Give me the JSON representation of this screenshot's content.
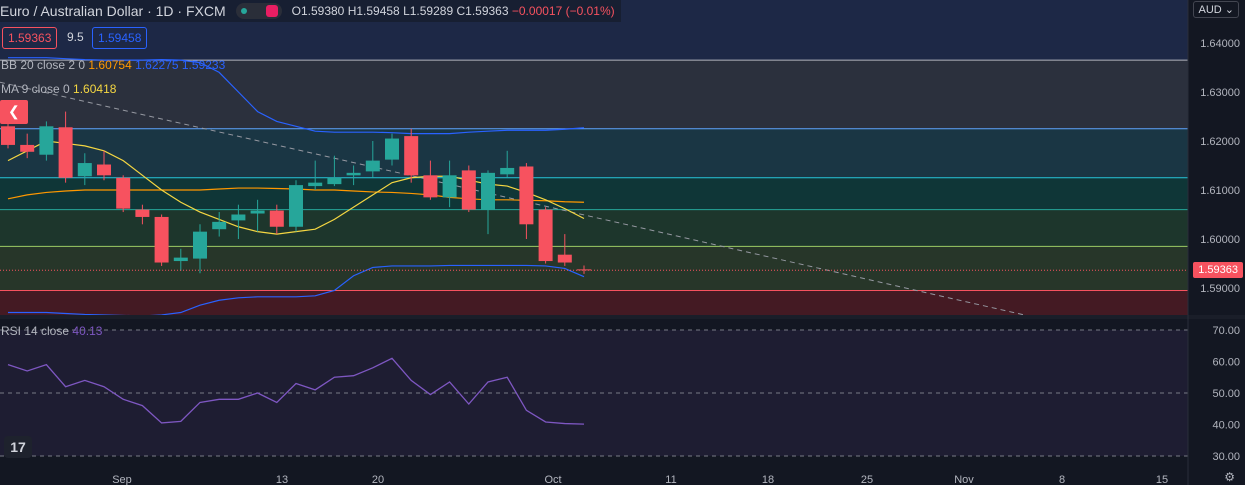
{
  "header": {
    "symbol_title": "Euro / Australian Dollar · 1D · FXCM",
    "ohlc": {
      "o": "O1.59380",
      "h": "H1.59458",
      "l": "L1.59289",
      "c": "C1.59363",
      "chg": "−0.00017 (−0.01%)"
    }
  },
  "pills": {
    "bid": "1.59363",
    "spread": "9.5",
    "ask": "1.59458"
  },
  "indicators": {
    "bb_label": "BB 20 close 2 0",
    "bb_basis": "1.60754",
    "bb_upper": "1.62275",
    "bb_lower": "1.59233",
    "ma_label": "MA 9 close 0",
    "ma_value": "1.60418",
    "rsi_label": "RSI 14 close",
    "rsi_value": "40.13"
  },
  "currency_menu": "AUD",
  "current_price_badge": "1.59363",
  "colors": {
    "up": "#26a69a",
    "down": "#f7525f",
    "bb": "#2962ff",
    "bb_basis": "#ff9800",
    "ma": "#f5d742",
    "rsi": "#7e57c2"
  },
  "chart_data": [
    {
      "type": "candlestick",
      "ylim": [
        1.585,
        1.645
      ],
      "y_ticks": [
        "1.64000",
        "1.63000",
        "1.62000",
        "1.61000",
        "1.60000",
        "1.59000"
      ],
      "x_ticks": [
        "Sep",
        "13",
        "20",
        "Oct",
        "11",
        "18",
        "25",
        "Nov",
        "8",
        "15"
      ],
      "candles": [
        {
          "d": "Aug 26",
          "o": 1.623,
          "h": 1.6245,
          "l": 1.6185,
          "c": 1.6192
        },
        {
          "d": "Aug 27",
          "o": 1.6192,
          "h": 1.6215,
          "l": 1.6165,
          "c": 1.6178
        },
        {
          "d": "Aug 30",
          "o": 1.6172,
          "h": 1.624,
          "l": 1.616,
          "c": 1.623
        },
        {
          "d": "Aug 31",
          "o": 1.6228,
          "h": 1.626,
          "l": 1.6115,
          "c": 1.6125
        },
        {
          "d": "Sep 1",
          "o": 1.6128,
          "h": 1.6175,
          "l": 1.611,
          "c": 1.6155
        },
        {
          "d": "Sep 2",
          "o": 1.6152,
          "h": 1.618,
          "l": 1.612,
          "c": 1.613
        },
        {
          "d": "Sep 3",
          "o": 1.6125,
          "h": 1.613,
          "l": 1.6055,
          "c": 1.6062
        },
        {
          "d": "Sep 6",
          "o": 1.606,
          "h": 1.607,
          "l": 1.603,
          "c": 1.6045
        },
        {
          "d": "Sep 7",
          "o": 1.6045,
          "h": 1.605,
          "l": 1.5945,
          "c": 1.5952
        },
        {
          "d": "Sep 8",
          "o": 1.5955,
          "h": 1.598,
          "l": 1.5935,
          "c": 1.5962
        },
        {
          "d": "Sep 9",
          "o": 1.596,
          "h": 1.603,
          "l": 1.593,
          "c": 1.6015
        },
        {
          "d": "Sep 10",
          "o": 1.602,
          "h": 1.6055,
          "l": 1.6005,
          "c": 1.6035
        },
        {
          "d": "Sep 13",
          "o": 1.6038,
          "h": 1.607,
          "l": 1.6,
          "c": 1.605
        },
        {
          "d": "Sep 14",
          "o": 1.6052,
          "h": 1.608,
          "l": 1.6015,
          "c": 1.6058
        },
        {
          "d": "Sep 15",
          "o": 1.6058,
          "h": 1.607,
          "l": 1.601,
          "c": 1.6025
        },
        {
          "d": "Sep 16",
          "o": 1.6025,
          "h": 1.612,
          "l": 1.6015,
          "c": 1.611
        },
        {
          "d": "Sep 17",
          "o": 1.6108,
          "h": 1.616,
          "l": 1.61,
          "c": 1.6115
        },
        {
          "d": "Sep 20",
          "o": 1.6112,
          "h": 1.617,
          "l": 1.6108,
          "c": 1.6125
        },
        {
          "d": "Sep 21",
          "o": 1.613,
          "h": 1.615,
          "l": 1.611,
          "c": 1.6135
        },
        {
          "d": "Sep 22",
          "o": 1.6138,
          "h": 1.62,
          "l": 1.6125,
          "c": 1.616
        },
        {
          "d": "Sep 23",
          "o": 1.6162,
          "h": 1.6215,
          "l": 1.615,
          "c": 1.6205
        },
        {
          "d": "Sep 24",
          "o": 1.621,
          "h": 1.6225,
          "l": 1.6115,
          "c": 1.613
        },
        {
          "d": "Sep 27",
          "o": 1.613,
          "h": 1.616,
          "l": 1.608,
          "c": 1.6085
        },
        {
          "d": "Sep 28",
          "o": 1.6085,
          "h": 1.616,
          "l": 1.6065,
          "c": 1.613
        },
        {
          "d": "Sep 29",
          "o": 1.614,
          "h": 1.615,
          "l": 1.6055,
          "c": 1.606
        },
        {
          "d": "Sep 30",
          "o": 1.606,
          "h": 1.614,
          "l": 1.601,
          "c": 1.6135
        },
        {
          "d": "Oct 1",
          "o": 1.6132,
          "h": 1.618,
          "l": 1.6125,
          "c": 1.6145
        },
        {
          "d": "Oct 4",
          "o": 1.6148,
          "h": 1.6155,
          "l": 1.6,
          "c": 1.603
        },
        {
          "d": "Oct 5",
          "o": 1.606,
          "h": 1.6065,
          "l": 1.595,
          "c": 1.5955
        },
        {
          "d": "Oct 6",
          "o": 1.5968,
          "h": 1.601,
          "l": 1.5945,
          "c": 1.5952
        },
        {
          "d": "Oct 7",
          "o": 1.5938,
          "h": 1.59458,
          "l": 1.59289,
          "c": 1.59363
        }
      ],
      "bb_upper": [
        1.637,
        1.637,
        1.637,
        1.6368,
        1.6366,
        1.6365,
        1.6365,
        1.6365,
        1.6366,
        1.6365,
        1.636,
        1.634,
        1.63,
        1.626,
        1.624,
        1.623,
        1.622,
        1.6218,
        1.6218,
        1.6218,
        1.6217,
        1.6215,
        1.6215,
        1.6215,
        1.6218,
        1.622,
        1.6222,
        1.6222,
        1.6222,
        1.6224,
        1.6227
      ],
      "bb_basis": [
        1.6082,
        1.609,
        1.6095,
        1.6098,
        1.61,
        1.61,
        1.61,
        1.61,
        1.61,
        1.61,
        1.61,
        1.6102,
        1.6104,
        1.6104,
        1.6103,
        1.6102,
        1.61,
        1.61,
        1.6098,
        1.6096,
        1.6095,
        1.6093,
        1.609,
        1.6085,
        1.6082,
        1.608,
        1.608,
        1.6079,
        1.6078,
        1.6076,
        1.6075
      ],
      "bb_lower": [
        1.585,
        1.585,
        1.585,
        1.5848,
        1.5846,
        1.5845,
        1.5844,
        1.5843,
        1.5845,
        1.585,
        1.5865,
        1.5875,
        1.588,
        1.5882,
        1.5882,
        1.5882,
        1.5884,
        1.5895,
        1.5925,
        1.5942,
        1.5945,
        1.5945,
        1.5945,
        1.5946,
        1.5946,
        1.5946,
        1.5946,
        1.5946,
        1.5945,
        1.594,
        1.5923
      ],
      "ma": [
        1.616,
        1.618,
        1.62,
        1.6195,
        1.619,
        1.618,
        1.616,
        1.613,
        1.61,
        1.6075,
        1.6055,
        1.604,
        1.6025,
        1.6015,
        1.601,
        1.6015,
        1.602,
        1.604,
        1.6065,
        1.609,
        1.6115,
        1.6125,
        1.6128,
        1.6128,
        1.612,
        1.6112,
        1.6108,
        1.6095,
        1.608,
        1.6062,
        1.60418
      ],
      "levels": [
        1.6365,
        1.6225,
        1.6125,
        1.606,
        1.5985,
        1.5895
      ],
      "trendline": {
        "from": {
          "d": "Aug 26",
          "y": 1.632
        },
        "to": {
          "d": "Nov 6",
          "y": 1.584
        }
      },
      "current": 1.59363
    },
    {
      "type": "line",
      "title": "RSI 14 close",
      "ylim": [
        28,
        74
      ],
      "y_ticks": [
        "70.00",
        "60.00",
        "50.00",
        "40.00",
        "30.00"
      ],
      "bands": [
        70,
        50,
        30
      ],
      "values": [
        59,
        57,
        59,
        52,
        54,
        52,
        48,
        46,
        40.5,
        41,
        47,
        48,
        48,
        50,
        47,
        53,
        51,
        55,
        55.5,
        58,
        61,
        54,
        49.5,
        53.5,
        46.5,
        53.5,
        55,
        44.5,
        40.8,
        40.3,
        40.13
      ]
    }
  ]
}
